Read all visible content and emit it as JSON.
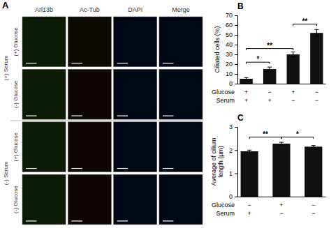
{
  "chart_data": [
    {
      "type": "image_grid",
      "title": "A",
      "col_labels": [
        "Arl13b",
        "Ac-Tub",
        "DAPI",
        "Merge"
      ],
      "row_labels": [
        "(+) Glucose",
        "(-) Glucose",
        "(+) Glucose",
        "(-) Glucose"
      ],
      "group_labels": [
        "(+) Serum",
        "(-) Serum"
      ],
      "colors": [
        [
          "#0a1a04",
          "#0d0a04",
          "#000814",
          "#000814"
        ],
        [
          "#0a1a04",
          "#0d0604",
          "#000814",
          "#000814"
        ],
        [
          "#0a1a04",
          "#0d0604",
          "#000814",
          "#000814"
        ],
        [
          "#0a1a04",
          "#0d0604",
          "#000814",
          "#000814"
        ]
      ]
    },
    {
      "type": "bar",
      "title": "B",
      "categories": [
        [
          "+",
          "+"
        ],
        [
          "−",
          "+"
        ],
        [
          "+",
          "−"
        ],
        [
          "−",
          "−"
        ]
      ],
      "category_levels": [
        "Glucose",
        "Serum"
      ],
      "values": [
        5,
        15,
        30,
        52
      ],
      "errors": [
        1.2,
        2.0,
        2.5,
        3.5
      ],
      "y_label": "Ciliated cells (%)",
      "ylim": [
        0,
        70
      ],
      "yticks": [
        0,
        10,
        20,
        30,
        40,
        50,
        60,
        70
      ],
      "color": "#111111",
      "annotations": [
        {
          "x1": 0,
          "x2": 1,
          "y": 22,
          "label": "*"
        },
        {
          "x1": 0,
          "x2": 2,
          "y": 36,
          "label": "**"
        },
        {
          "x1": 2,
          "x2": 3,
          "y": 61,
          "label": "**"
        }
      ]
    },
    {
      "type": "bar",
      "title": "C",
      "categories": [
        [
          "−",
          "+"
        ],
        [
          "+",
          "−"
        ],
        [
          "−",
          "−"
        ]
      ],
      "category_levels": [
        "Glucose",
        "Serum"
      ],
      "values": [
        1.95,
        2.28,
        2.15
      ],
      "errors": [
        0.05,
        0.06,
        0.05
      ],
      "y_label": "Average of cilium\nlength (μm)",
      "ylim": [
        0,
        3
      ],
      "yticks": [
        0,
        1,
        2,
        3
      ],
      "color": "#111111",
      "annotations": [
        {
          "x1": 0,
          "x2": 1,
          "y": 2.56,
          "label": "**"
        },
        {
          "x1": 1,
          "x2": 2,
          "y": 2.56,
          "label": "*"
        }
      ]
    }
  ]
}
